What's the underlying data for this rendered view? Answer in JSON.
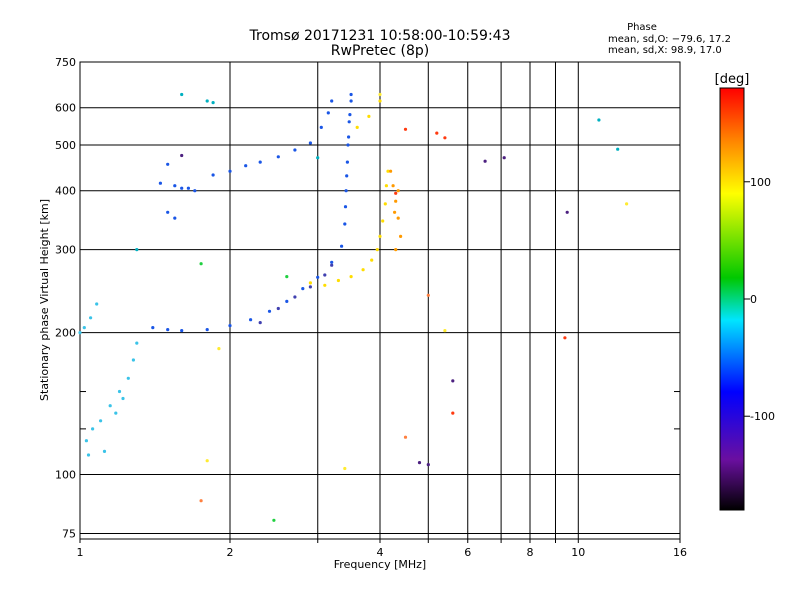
{
  "chart_data": {
    "type": "scatter",
    "title": "Tromsø 20171231 10:58:00-10:59:43",
    "subtitle": "RwPretec (8p)",
    "xlabel": "Frequency [MHz]",
    "ylabel": "Stationary phase Virtual Height [km]",
    "x_scale": "log",
    "y_scale": "log",
    "xlim": [
      1,
      16
    ],
    "ylim": [
      73,
      750
    ],
    "x_ticks": [
      1,
      2,
      4,
      6,
      8,
      10,
      16
    ],
    "x_minor_ticks": [
      3,
      5,
      7,
      9
    ],
    "y_ticks": [
      75,
      100,
      200,
      300,
      400,
      500,
      600,
      750
    ],
    "y_minor_ticks": [
      125,
      150
    ],
    "grid": true,
    "stats": {
      "heading": "Phase",
      "line1": "mean, sd,O: −79.6, 17.2",
      "line2": "mean, sd,X: 98.9, 17.0"
    },
    "colorbar": {
      "label": "[deg]",
      "ticks": [
        100,
        0,
        -100
      ],
      "range": [
        -180,
        180
      ],
      "colormap": "rainbow (black-purple-blue-cyan-green-yellow-red)"
    },
    "series": [
      {
        "color": "#1a56e6",
        "points": [
          [
            1.45,
            415
          ],
          [
            1.55,
            410
          ],
          [
            1.6,
            405
          ],
          [
            1.65,
            405
          ],
          [
            1.7,
            400
          ],
          [
            1.5,
            360
          ],
          [
            1.55,
            350
          ],
          [
            1.5,
            455
          ],
          [
            1.85,
            432
          ],
          [
            2.0,
            440
          ],
          [
            2.15,
            452
          ],
          [
            2.3,
            460
          ],
          [
            2.5,
            472
          ],
          [
            2.7,
            488
          ],
          [
            2.9,
            505
          ],
          [
            3.05,
            545
          ],
          [
            3.15,
            585
          ],
          [
            3.2,
            620
          ],
          [
            1.4,
            205
          ],
          [
            1.5,
            203
          ],
          [
            1.6,
            202
          ],
          [
            1.8,
            203
          ],
          [
            2.0,
            207
          ],
          [
            2.2,
            213
          ],
          [
            2.4,
            222
          ],
          [
            2.6,
            233
          ],
          [
            2.8,
            248
          ],
          [
            3.0,
            262
          ],
          [
            3.2,
            282
          ],
          [
            3.35,
            305
          ],
          [
            3.4,
            340
          ],
          [
            3.42,
            400
          ],
          [
            3.44,
            460
          ],
          [
            3.46,
            520
          ],
          [
            3.48,
            580
          ],
          [
            3.5,
            640
          ],
          [
            3.5,
            620
          ],
          [
            3.47,
            560
          ],
          [
            3.45,
            500
          ],
          [
            3.43,
            430
          ],
          [
            3.41,
            370
          ]
        ]
      },
      {
        "color": "#3ac3e8",
        "points": [
          [
            1.0,
            200
          ],
          [
            1.02,
            205
          ],
          [
            1.05,
            215
          ],
          [
            1.08,
            230
          ],
          [
            1.03,
            118
          ],
          [
            1.06,
            125
          ],
          [
            1.1,
            130
          ],
          [
            1.15,
            140
          ],
          [
            1.2,
            150
          ],
          [
            1.25,
            160
          ],
          [
            1.28,
            175
          ],
          [
            1.12,
            112
          ],
          [
            1.04,
            110
          ],
          [
            1.18,
            135
          ],
          [
            1.22,
            145
          ],
          [
            1.3,
            190
          ]
        ]
      },
      {
        "color": "#ffdd00",
        "points": [
          [
            2.9,
            255
          ],
          [
            3.1,
            252
          ],
          [
            3.3,
            258
          ],
          [
            3.5,
            263
          ],
          [
            3.7,
            272
          ],
          [
            3.85,
            285
          ],
          [
            3.95,
            300
          ],
          [
            4.0,
            320
          ],
          [
            4.05,
            345
          ],
          [
            4.1,
            375
          ],
          [
            4.12,
            410
          ],
          [
            4.15,
            440
          ],
          [
            3.6,
            545
          ],
          [
            3.8,
            575
          ],
          [
            4.0,
            620
          ]
        ]
      },
      {
        "color": "#ff9a00",
        "points": [
          [
            4.2,
            440
          ],
          [
            4.25,
            410
          ],
          [
            4.3,
            380
          ],
          [
            4.35,
            350
          ],
          [
            4.4,
            320
          ],
          [
            4.3,
            300
          ],
          [
            4.28,
            360
          ],
          [
            4.35,
            400
          ]
        ]
      },
      {
        "color": "#4040b0",
        "points": [
          [
            2.3,
            210
          ],
          [
            2.5,
            225
          ],
          [
            2.7,
            238
          ],
          [
            2.9,
            250
          ],
          [
            3.1,
            265
          ],
          [
            3.2,
            278
          ]
        ]
      },
      {
        "color": "#00b0c0",
        "points": [
          [
            1.6,
            640
          ],
          [
            1.8,
            620
          ],
          [
            1.85,
            615
          ],
          [
            3.0,
            470
          ],
          [
            1.3,
            300
          ],
          [
            11,
            565
          ],
          [
            12,
            490
          ]
        ]
      },
      {
        "color": "#4c2080",
        "points": [
          [
            5.6,
            158
          ],
          [
            6.5,
            462
          ],
          [
            7.1,
            470
          ],
          [
            4.8,
            106
          ],
          [
            5.0,
            105
          ],
          [
            9.5,
            360
          ],
          [
            1.6,
            475
          ]
        ]
      },
      {
        "color": "#ff3a10",
        "points": [
          [
            5.4,
            518
          ],
          [
            5.2,
            530
          ],
          [
            5.6,
            135
          ],
          [
            9.4,
            195
          ],
          [
            4.5,
            540
          ],
          [
            4.3,
            395
          ]
        ]
      },
      {
        "color": "#ffeb30",
        "points": [
          [
            4.0,
            640
          ],
          [
            5.4,
            202
          ],
          [
            1.9,
            185
          ],
          [
            3.4,
            103
          ],
          [
            1.8,
            107
          ],
          [
            12.5,
            375
          ]
        ]
      },
      {
        "color": "#20d040",
        "points": [
          [
            2.45,
            80
          ],
          [
            2.6,
            263
          ],
          [
            1.75,
            280
          ]
        ]
      },
      {
        "color": "#ff8040",
        "points": [
          [
            1.75,
            88
          ],
          [
            4.5,
            120
          ],
          [
            5.0,
            240
          ]
        ]
      }
    ]
  }
}
